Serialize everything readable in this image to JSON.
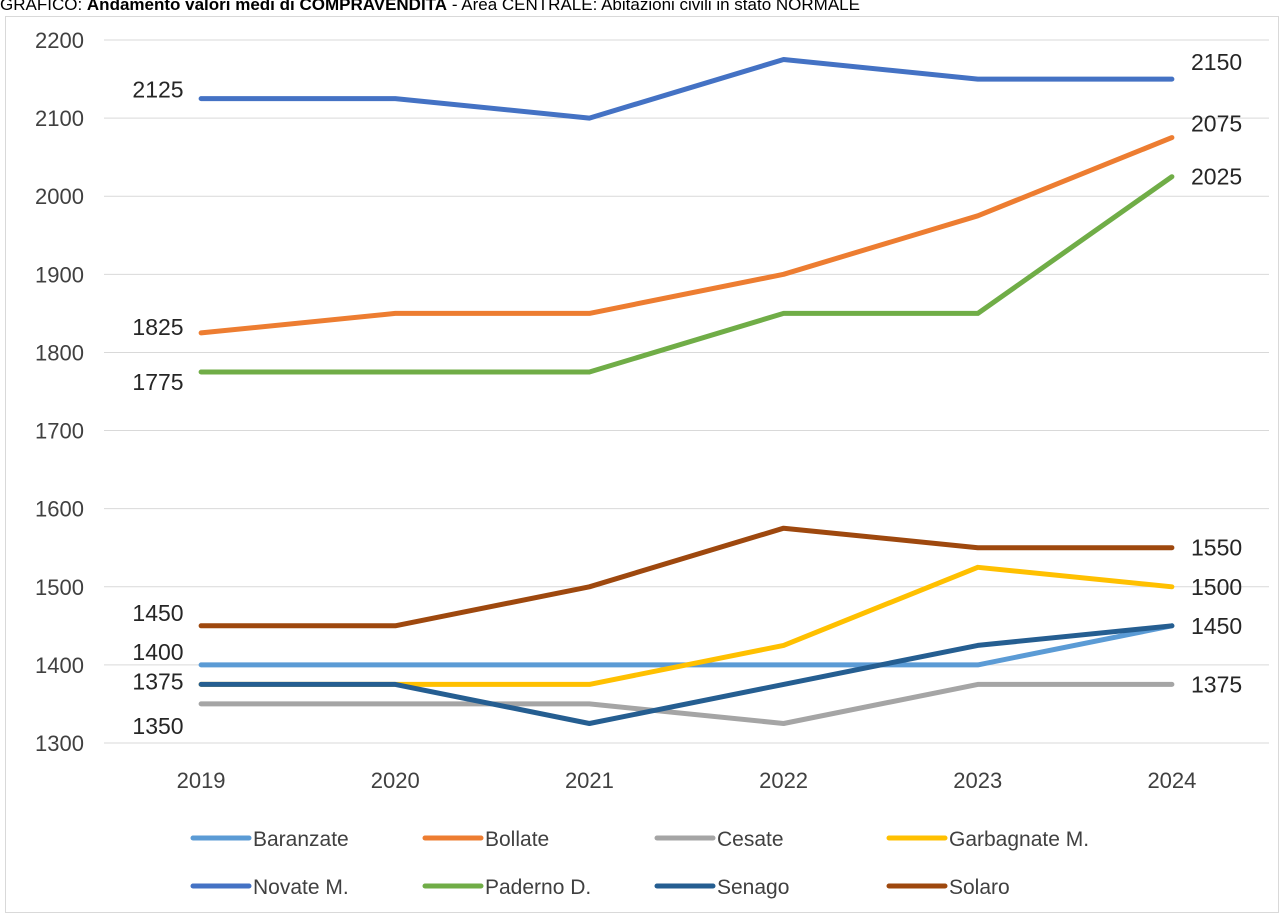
{
  "caption": {
    "prefix": "GRAFICO: ",
    "bold": "Andamento valori medi di COMPRAVENDITA",
    "suffix": " - Area CENTRALE: Abitazioni civili in stato NORMALE"
  },
  "chart_data": {
    "type": "line",
    "title": "",
    "xlabel": "",
    "ylabel": "",
    "categories": [
      "2019",
      "2020",
      "2021",
      "2022",
      "2023",
      "2024"
    ],
    "ylim": [
      1300,
      2200
    ],
    "yticks": [
      1300,
      1400,
      1500,
      1600,
      1700,
      1800,
      1900,
      2000,
      2100,
      2200
    ],
    "grid": true,
    "legend_placement": "bottom",
    "series": [
      {
        "name": "Baranzate",
        "color": "#5b9bd5",
        "values": [
          1400,
          1400,
          1400,
          1400,
          1400,
          1450
        ]
      },
      {
        "name": "Bollate",
        "color": "#ed7d31",
        "values": [
          1825,
          1850,
          1850,
          1900,
          1975,
          2075
        ]
      },
      {
        "name": "Cesate",
        "color": "#a5a5a5",
        "values": [
          1350,
          1350,
          1350,
          1325,
          1375,
          1375
        ]
      },
      {
        "name": "Garbagnate M.",
        "color": "#ffc000",
        "values": [
          1375,
          1375,
          1375,
          1425,
          1525,
          1500
        ]
      },
      {
        "name": "Novate M.",
        "color": "#4472c4",
        "values": [
          2125,
          2125,
          2100,
          2175,
          2150,
          2150
        ]
      },
      {
        "name": "Paderno D.",
        "color": "#70ad47",
        "values": [
          1775,
          1775,
          1775,
          1850,
          1850,
          2025
        ]
      },
      {
        "name": "Senago",
        "color": "#255e91",
        "values": [
          1375,
          1375,
          1325,
          1375,
          1425,
          1450
        ]
      },
      {
        "name": "Solaro",
        "color": "#9e480e",
        "values": [
          1450,
          1450,
          1500,
          1575,
          1550,
          1550
        ]
      }
    ],
    "data_labels": {
      "first": [
        {
          "text": "1400",
          "series": "Baranzate"
        },
        {
          "text": "1825",
          "series": "Bollate"
        },
        {
          "text": "1350",
          "series": "Cesate"
        },
        {
          "text": "1375",
          "series": "Garbagnate M."
        },
        {
          "text": "2125",
          "series": "Novate M."
        },
        {
          "text": "1775",
          "series": "Paderno D."
        },
        {
          "text": "1450",
          "series": "Solaro"
        }
      ],
      "last": [
        {
          "text": "2150",
          "series": "Novate M."
        },
        {
          "text": "2075",
          "series": "Bollate"
        },
        {
          "text": "2025",
          "series": "Paderno D."
        },
        {
          "text": "1550",
          "series": "Solaro"
        },
        {
          "text": "1500",
          "series": "Garbagnate M."
        },
        {
          "text": "1450",
          "series": "Senago"
        },
        {
          "text": "1375",
          "series": "Cesate"
        }
      ]
    },
    "gridline_color": "#d9d9d9",
    "label_color": "#404040"
  }
}
